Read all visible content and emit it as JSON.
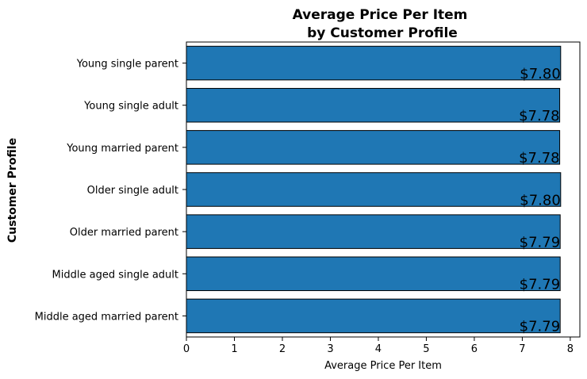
{
  "chart_data": {
    "type": "bar",
    "orientation": "horizontal",
    "title_lines": [
      "Average Price Per Item",
      "by Customer Profile"
    ],
    "xlabel": "Average Price Per Item",
    "ylabel": "Customer Profile",
    "categories": [
      "Young single parent",
      "Young single adult",
      "Young married parent",
      "Older single adult",
      "Older married parent",
      "Middle aged single adult",
      "Middle aged married parent"
    ],
    "values": [
      7.8,
      7.78,
      7.78,
      7.8,
      7.79,
      7.79,
      7.79
    ],
    "data_labels": [
      "$7.80",
      "$7.78",
      "$7.78",
      "$7.80",
      "$7.79",
      "$7.79",
      "$7.79"
    ],
    "xlim": [
      0,
      8.2
    ],
    "xticks": [
      0,
      1,
      2,
      3,
      4,
      5,
      6,
      7,
      8
    ],
    "bar_color": "#1f77b4",
    "edge_color": "#000000",
    "grid": false,
    "legend": "none"
  }
}
